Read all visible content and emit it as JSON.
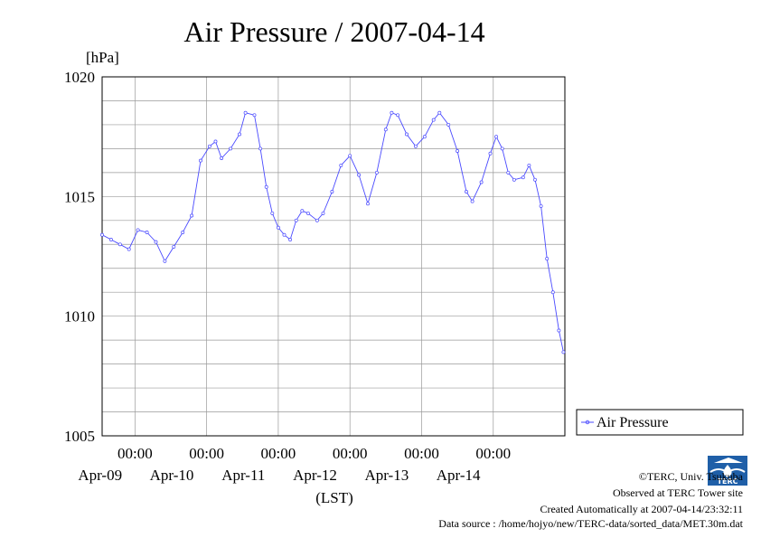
{
  "chart_data": {
    "type": "line",
    "title": "Air Pressure / 2007-04-14",
    "ylabel": "[hPa]",
    "xlabel": "(LST)",
    "ylim": [
      1005,
      1020
    ],
    "yticks": [
      "1005",
      "1010",
      "1015",
      "1020"
    ],
    "xlim": [
      "2007-04-08T13:00",
      "2007-04-14T23:59"
    ],
    "xticks": [
      {
        "at": "2007-04-09T00:00",
        "time": "00:00",
        "date": "Apr-09"
      },
      {
        "at": "2007-04-10T00:00",
        "time": "00:00",
        "date": "Apr-10"
      },
      {
        "at": "2007-04-11T00:00",
        "time": "00:00",
        "date": "Apr-11"
      },
      {
        "at": "2007-04-12T00:00",
        "time": "00:00",
        "date": "Apr-12"
      },
      {
        "at": "2007-04-13T00:00",
        "time": "00:00",
        "date": "Apr-13"
      },
      {
        "at": "2007-04-14T00:00",
        "time": "00:00",
        "date": "Apr-14"
      }
    ],
    "grid": true,
    "legend_position": "right",
    "series": [
      {
        "name": "Air Pressure",
        "color": "#4a4aff",
        "marker": "circle",
        "points": [
          [
            "2007-04-08T13:00",
            1013.4
          ],
          [
            "2007-04-08T16:00",
            1013.2
          ],
          [
            "2007-04-08T19:00",
            1013.0
          ],
          [
            "2007-04-08T22:00",
            1012.8
          ],
          [
            "2007-04-09T01:00",
            1013.6
          ],
          [
            "2007-04-09T04:00",
            1013.5
          ],
          [
            "2007-04-09T07:00",
            1013.1
          ],
          [
            "2007-04-09T10:00",
            1012.3
          ],
          [
            "2007-04-09T13:00",
            1012.9
          ],
          [
            "2007-04-09T16:00",
            1013.5
          ],
          [
            "2007-04-09T19:00",
            1014.2
          ],
          [
            "2007-04-09T22:00",
            1016.5
          ],
          [
            "2007-04-10T01:00",
            1017.1
          ],
          [
            "2007-04-10T03:00",
            1017.3
          ],
          [
            "2007-04-10T05:00",
            1016.6
          ],
          [
            "2007-04-10T08:00",
            1017.0
          ],
          [
            "2007-04-10T11:00",
            1017.6
          ],
          [
            "2007-04-10T13:00",
            1018.5
          ],
          [
            "2007-04-10T16:00",
            1018.4
          ],
          [
            "2007-04-10T18:00",
            1017.0
          ],
          [
            "2007-04-10T20:00",
            1015.4
          ],
          [
            "2007-04-10T22:00",
            1014.3
          ],
          [
            "2007-04-11T00:00",
            1013.7
          ],
          [
            "2007-04-11T02:00",
            1013.4
          ],
          [
            "2007-04-11T04:00",
            1013.2
          ],
          [
            "2007-04-11T06:00",
            1014.0
          ],
          [
            "2007-04-11T08:00",
            1014.4
          ],
          [
            "2007-04-11T10:00",
            1014.3
          ],
          [
            "2007-04-11T13:00",
            1014.0
          ],
          [
            "2007-04-11T15:00",
            1014.3
          ],
          [
            "2007-04-11T18:00",
            1015.2
          ],
          [
            "2007-04-11T21:00",
            1016.3
          ],
          [
            "2007-04-12T00:00",
            1016.7
          ],
          [
            "2007-04-12T03:00",
            1015.9
          ],
          [
            "2007-04-12T06:00",
            1014.7
          ],
          [
            "2007-04-12T09:00",
            1016.0
          ],
          [
            "2007-04-12T12:00",
            1017.8
          ],
          [
            "2007-04-12T14:00",
            1018.5
          ],
          [
            "2007-04-12T16:00",
            1018.4
          ],
          [
            "2007-04-12T19:00",
            1017.6
          ],
          [
            "2007-04-12T22:00",
            1017.1
          ],
          [
            "2007-04-13T01:00",
            1017.5
          ],
          [
            "2007-04-13T04:00",
            1018.2
          ],
          [
            "2007-04-13T06:00",
            1018.5
          ],
          [
            "2007-04-13T09:00",
            1018.0
          ],
          [
            "2007-04-13T12:00",
            1016.9
          ],
          [
            "2007-04-13T15:00",
            1015.2
          ],
          [
            "2007-04-13T17:00",
            1014.8
          ],
          [
            "2007-04-13T20:00",
            1015.6
          ],
          [
            "2007-04-13T23:00",
            1016.8
          ],
          [
            "2007-04-14T01:00",
            1017.5
          ],
          [
            "2007-04-14T03:00",
            1017.0
          ],
          [
            "2007-04-14T05:00",
            1016.0
          ],
          [
            "2007-04-14T07:00",
            1015.7
          ],
          [
            "2007-04-14T10:00",
            1015.8
          ],
          [
            "2007-04-14T12:00",
            1016.3
          ],
          [
            "2007-04-14T14:00",
            1015.7
          ],
          [
            "2007-04-14T16:00",
            1014.6
          ],
          [
            "2007-04-14T18:00",
            1012.4
          ],
          [
            "2007-04-14T20:00",
            1011.0
          ],
          [
            "2007-04-14T22:00",
            1009.4
          ],
          [
            "2007-04-14T23:30",
            1008.5
          ]
        ]
      }
    ]
  },
  "legend": {
    "label": "Air Pressure"
  },
  "credits": {
    "copyright": "©TERC, Univ. Tsukuba",
    "site": "Observed at TERC Tower site",
    "created": "Created Automatically at 2007-04-14/23:32:11",
    "source": "Data source : /home/hojyo/new/TERC-data/sorted_data/MET.30m.dat"
  },
  "logo": {
    "text": "TERC",
    "name": "terc-logo",
    "colors": {
      "blue": "#1f5fa8"
    }
  }
}
